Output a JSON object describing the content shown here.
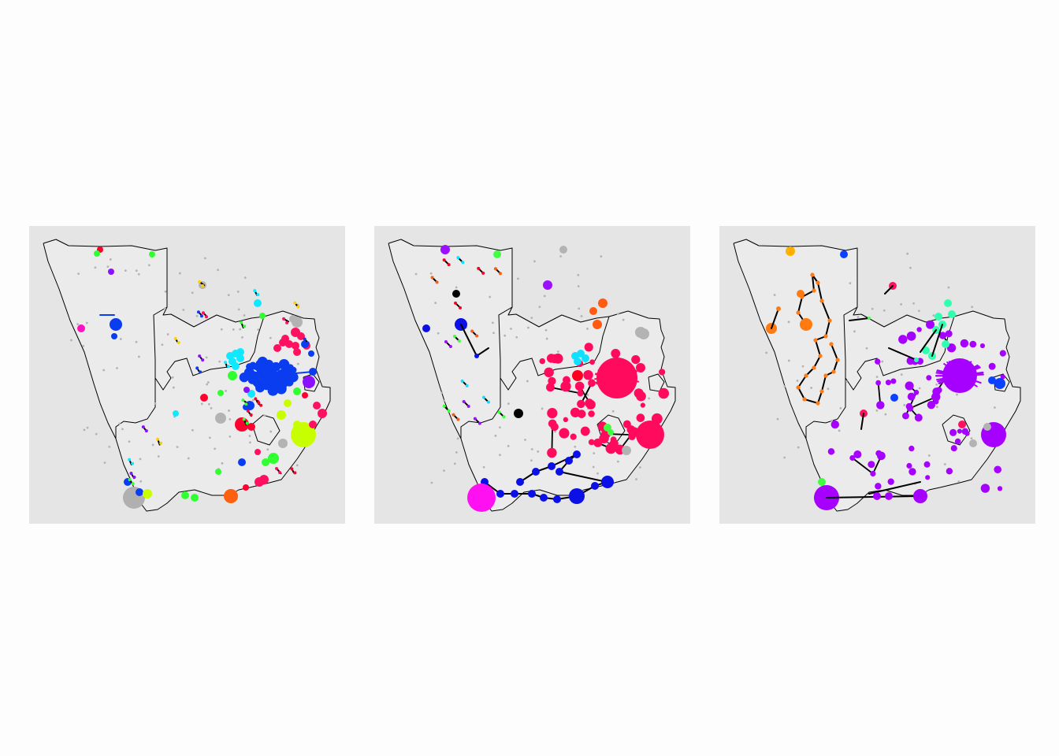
{
  "figure": {
    "panel_count": 3,
    "colors": {
      "panel_background": "#e5e5e5",
      "land_fill": "#ebebeb",
      "border": "#000000",
      "edge": "#000000",
      "unclustered": "#b3b3b3",
      "page_background": "#fdfdfd"
    },
    "panels": [
      {
        "id": "panel-1",
        "palette": {
          "major": "#0a3cf0",
          "southwest": "#b0b0b0",
          "east": "#c8ff00",
          "pink": "#ff1060",
          "red": "#ff0030",
          "cyan": "#10e8ff",
          "orange": "#ff6010",
          "green": "#30ff30",
          "purple": "#8a10ff",
          "magenta": "#ff10c0",
          "yellow": "#ffd000"
        }
      },
      {
        "id": "panel-2",
        "palette": {
          "major": "#ff0a5c",
          "southwest": "#ff10f0",
          "blue": "#0a10e6",
          "cyan": "#10e0ff",
          "orange": "#ff5a10",
          "green": "#40ff40",
          "purple": "#9a10ff",
          "red": "#ff0020",
          "gray": "#b3b3b3"
        }
      },
      {
        "id": "panel-3",
        "palette": {
          "major": "#a600ff",
          "orange": "#ff7a10",
          "aqua": "#30ffb0",
          "blue": "#0a40ff",
          "yellow": "#ffb000",
          "pink": "#ff1060",
          "green": "#40ff40",
          "gray": "#b3b3b3"
        }
      }
    ]
  }
}
